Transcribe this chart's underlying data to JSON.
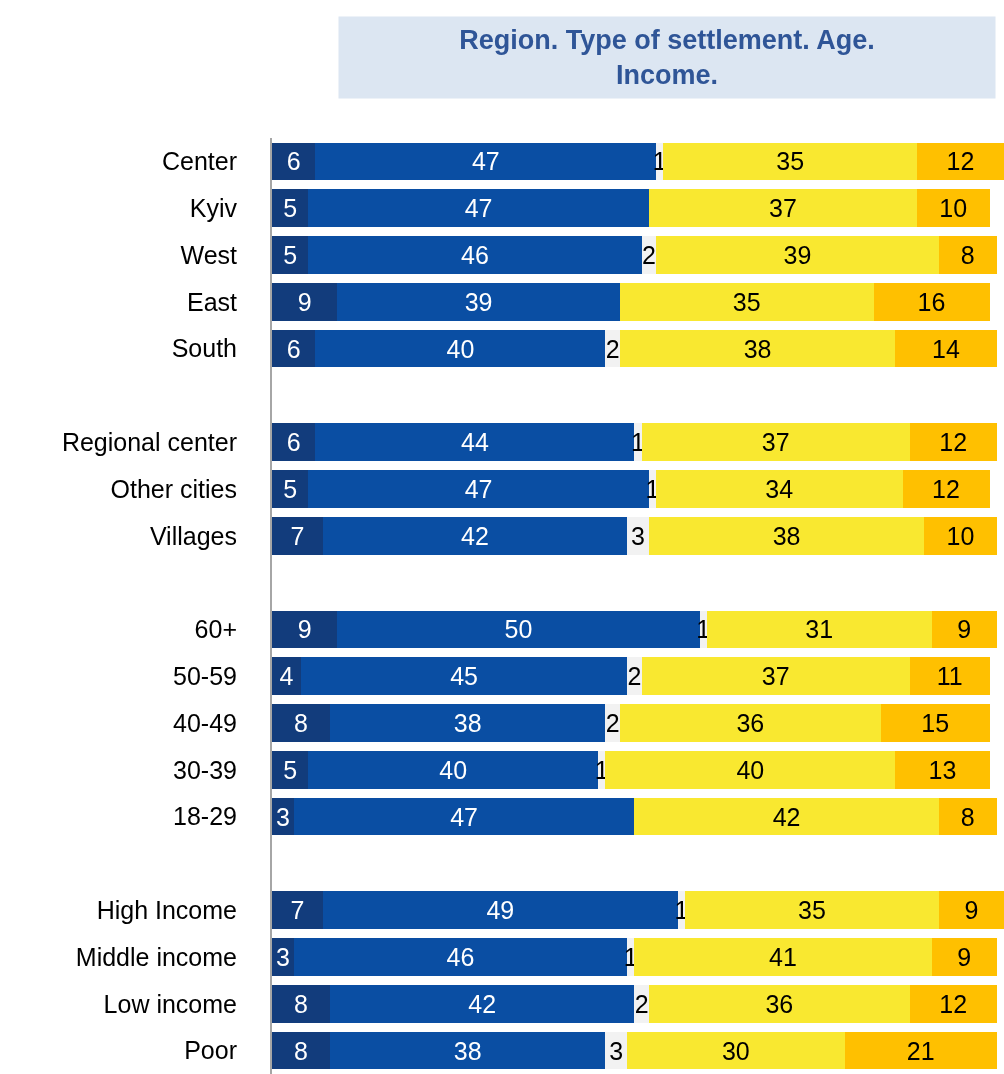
{
  "chart_data": {
    "type": "bar",
    "orientation": "horizontal",
    "stacked": true,
    "title": "Region. Type of settlement. Age. Income.",
    "categories": [
      "Center",
      "Kyiv",
      "West",
      "East",
      "South",
      null,
      "Regional center",
      "Other cities",
      "Villages",
      null,
      "60+",
      "50-59",
      "40-49",
      "30-39",
      "18-29",
      null,
      "High Income",
      "Middle income",
      "Low income",
      "Poor"
    ],
    "series": [
      {
        "color": "#123c7c",
        "values": [
          6,
          5,
          5,
          9,
          6,
          null,
          6,
          5,
          7,
          null,
          9,
          4,
          8,
          5,
          3,
          null,
          7,
          3,
          8,
          8
        ]
      },
      {
        "color": "#0a4ea3",
        "values": [
          47,
          47,
          46,
          39,
          40,
          null,
          44,
          47,
          42,
          null,
          50,
          45,
          38,
          40,
          47,
          null,
          49,
          46,
          42,
          38
        ]
      },
      {
        "color": "#f2f2f2",
        "values": [
          1,
          null,
          2,
          null,
          2,
          null,
          1,
          1,
          3,
          null,
          1,
          2,
          2,
          1,
          null,
          null,
          1,
          1,
          2,
          3
        ]
      },
      {
        "color": "#f9e830",
        "values": [
          35,
          37,
          39,
          35,
          38,
          null,
          37,
          34,
          38,
          null,
          31,
          37,
          36,
          40,
          42,
          null,
          35,
          41,
          36,
          30
        ]
      },
      {
        "color": "#ffc000",
        "values": [
          12,
          10,
          8,
          16,
          14,
          null,
          12,
          12,
          10,
          null,
          9,
          11,
          15,
          13,
          8,
          null,
          9,
          9,
          12,
          21
        ]
      }
    ],
    "xlim": [
      0,
      101
    ],
    "data_labels": true,
    "tick_labels": "y",
    "legend": false
  }
}
